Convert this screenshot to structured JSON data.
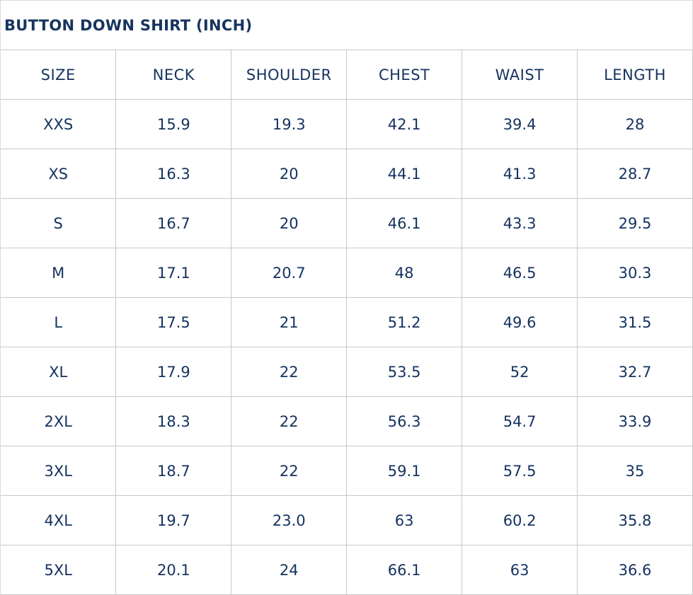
{
  "title": "BUTTON DOWN SHIRT (INCH)",
  "headers": [
    "SIZE",
    "NECK",
    "SHOULDER",
    "CHEST",
    "WAIST",
    "LENGTH"
  ],
  "rows": [
    [
      "XXS",
      "15.9",
      "19.3",
      "42.1",
      "39.4",
      "28"
    ],
    [
      "XS",
      "16.3",
      "20",
      "44.1",
      "41.3",
      "28.7"
    ],
    [
      "S",
      "16.7",
      "20",
      "46.1",
      "43.3",
      "29.5"
    ],
    [
      "M",
      "17.1",
      "20.7",
      "48",
      "46.5",
      "30.3"
    ],
    [
      "L",
      "17.5",
      "21",
      "51.2",
      "49.6",
      "31.5"
    ],
    [
      "XL",
      "17.9",
      "22",
      "53.5",
      "52",
      "32.7"
    ],
    [
      "2XL",
      "18.3",
      "22",
      "56.3",
      "54.7",
      "33.9"
    ],
    [
      "3XL",
      "18.7",
      "22",
      "59.1",
      "57.5",
      "35"
    ],
    [
      "4XL",
      "19.7",
      "23.0",
      "63",
      "60.2",
      "35.8"
    ],
    [
      "5XL",
      "20.1",
      "24",
      "66.1",
      "63",
      "36.6"
    ]
  ],
  "colors": {
    "text": "#14325f",
    "border": "#c8c8c8"
  }
}
